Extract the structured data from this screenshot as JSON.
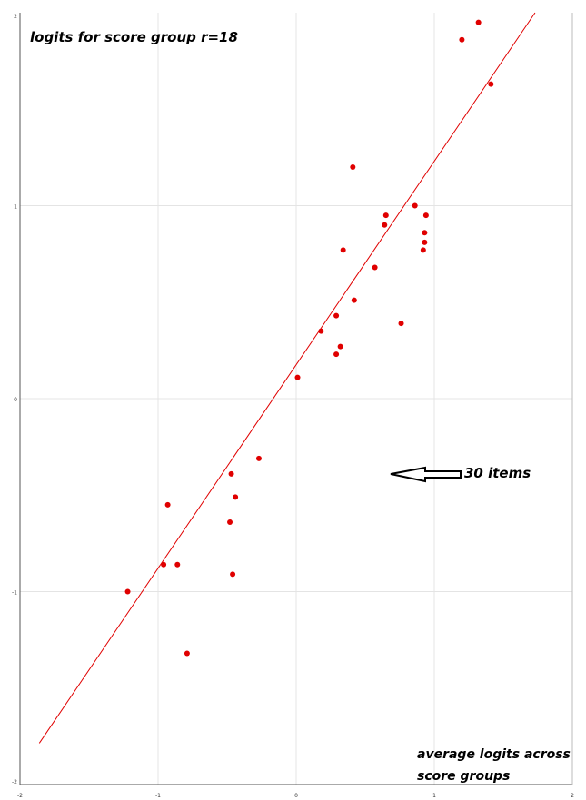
{
  "chart_data": {
    "type": "scatter",
    "title": "logits for score group r=18",
    "xlabel_lines": [
      "average logits across",
      "score groups"
    ],
    "xlim": [
      -2,
      2
    ],
    "ylim": [
      -2,
      2
    ],
    "x_ticks": [
      -2,
      -1,
      0,
      1,
      2
    ],
    "y_ticks": [
      2,
      1,
      0,
      -1,
      -2
    ],
    "x_tick_labels": [
      "-2",
      "-1",
      "0",
      "1",
      "2"
    ],
    "y_tick_labels": [
      "2",
      "1",
      "0",
      "-1",
      "-2"
    ],
    "grid": true,
    "point_color": "#e00000",
    "line_color": "#e00000",
    "identity_line": true,
    "annotation": {
      "text": "30 items",
      "arrow": "left-arrow"
    },
    "points": [
      {
        "x": 1.32,
        "y": 1.95
      },
      {
        "x": 1.2,
        "y": 1.86
      },
      {
        "x": 1.41,
        "y": 1.63
      },
      {
        "x": 0.41,
        "y": 1.2
      },
      {
        "x": 0.86,
        "y": 1.0
      },
      {
        "x": 0.65,
        "y": 0.95
      },
      {
        "x": 0.94,
        "y": 0.95
      },
      {
        "x": 0.64,
        "y": 0.9
      },
      {
        "x": 0.93,
        "y": 0.86
      },
      {
        "x": 0.93,
        "y": 0.81
      },
      {
        "x": 0.34,
        "y": 0.77
      },
      {
        "x": 0.92,
        "y": 0.77
      },
      {
        "x": 0.57,
        "y": 0.68
      },
      {
        "x": 0.42,
        "y": 0.51
      },
      {
        "x": 0.29,
        "y": 0.43
      },
      {
        "x": 0.76,
        "y": 0.39
      },
      {
        "x": 0.18,
        "y": 0.35
      },
      {
        "x": 0.32,
        "y": 0.27
      },
      {
        "x": 0.29,
        "y": 0.23
      },
      {
        "x": 0.01,
        "y": 0.11
      },
      {
        "x": -0.27,
        "y": -0.31
      },
      {
        "x": -0.47,
        "y": -0.39
      },
      {
        "x": -0.44,
        "y": -0.51
      },
      {
        "x": -0.93,
        "y": -0.55
      },
      {
        "x": -0.48,
        "y": -0.64
      },
      {
        "x": -0.96,
        "y": -0.86
      },
      {
        "x": -0.86,
        "y": -0.86
      },
      {
        "x": -0.46,
        "y": -0.91
      },
      {
        "x": -1.22,
        "y": -1.0
      },
      {
        "x": -0.79,
        "y": -1.32
      }
    ]
  }
}
